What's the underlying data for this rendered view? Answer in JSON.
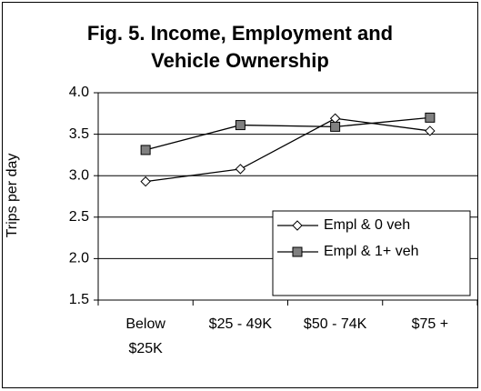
{
  "chart_data": {
    "type": "line",
    "title": "Fig. 5. Income, Employment and Vehicle Ownership",
    "ylabel": "Trips per day",
    "categories": [
      "Below $25K",
      "$25 - 49K",
      "$50 - 74K",
      "$75 +"
    ],
    "series": [
      {
        "name": "Empl & 0 veh",
        "color": "#000000",
        "marker": "diamond",
        "marker_fill": "#ffffff",
        "values": [
          2.93,
          3.08,
          3.69,
          3.54
        ]
      },
      {
        "name": "Empl & 1+ veh",
        "color": "#000000",
        "marker": "square",
        "marker_fill": "#808080",
        "values": [
          3.31,
          3.61,
          3.59,
          3.7
        ]
      }
    ],
    "ylim": [
      1.5,
      4.0
    ],
    "yticks": [
      1.5,
      {
        "value": 2.0,
        "label": "2.0"
      },
      2.5,
      {
        "value": 3.0,
        "label": "3.0"
      },
      3.5,
      {
        "value": 4.0,
        "label": "4.0"
      }
    ],
    "grid": true,
    "legend": "right"
  }
}
